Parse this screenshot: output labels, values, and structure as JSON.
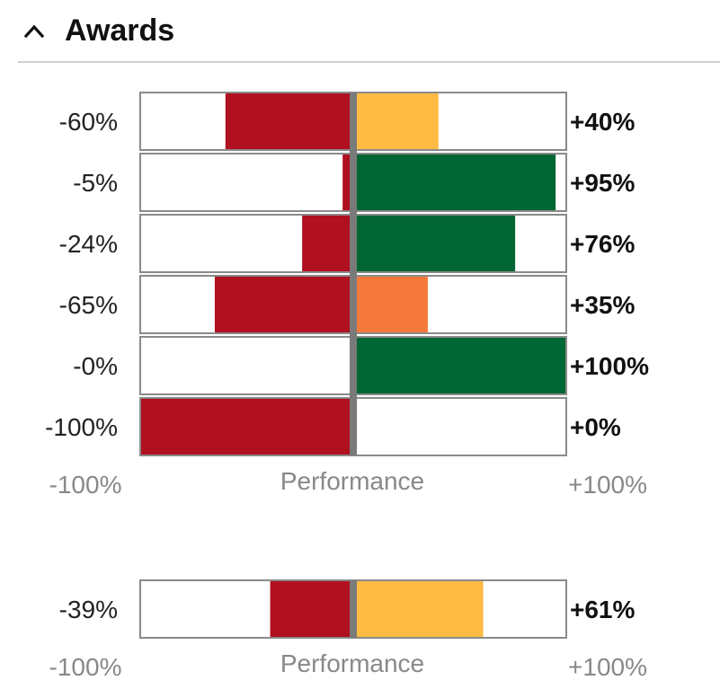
{
  "header": {
    "title": "Awards",
    "toggle_icon": "chevron-up-icon"
  },
  "colors": {
    "negative": "#B01020",
    "high": "#006633",
    "mid": "#FFBB44",
    "low": "#F5793A",
    "divider": "#7a7a7a",
    "frame": "#8a8a8a",
    "axis_text": "#888888"
  },
  "chart_data": [
    {
      "type": "bar",
      "orientation": "horizontal-diverging",
      "xlabel": "Performance",
      "xlim": [
        -100,
        100
      ],
      "tick_labels": [
        "-100%",
        "+100%"
      ],
      "rows": [
        {
          "negative": -60,
          "positive": 40,
          "negative_label": "-60%",
          "positive_label": "+40%",
          "positive_color": "#FFBB44"
        },
        {
          "negative": -5,
          "positive": 95,
          "negative_label": "-5%",
          "positive_label": "+95%",
          "positive_color": "#006633"
        },
        {
          "negative": -24,
          "positive": 76,
          "negative_label": "-24%",
          "positive_label": "+76%",
          "positive_color": "#006633"
        },
        {
          "negative": -65,
          "positive": 35,
          "negative_label": "-65%",
          "positive_label": "+35%",
          "positive_color": "#F5793A"
        },
        {
          "negative": 0,
          "positive": 100,
          "negative_label": "-0%",
          "positive_label": "+100%",
          "positive_color": "#006633"
        },
        {
          "negative": -100,
          "positive": 0,
          "negative_label": "-100%",
          "positive_label": "+0%",
          "positive_color": "#FFBB44"
        }
      ]
    },
    {
      "type": "bar",
      "orientation": "horizontal-diverging",
      "xlabel": "Performance",
      "xlim": [
        -100,
        100
      ],
      "tick_labels": [
        "-100%",
        "+100%"
      ],
      "rows": [
        {
          "negative": -39,
          "positive": 61,
          "negative_label": "-39%",
          "positive_label": "+61%",
          "positive_color": "#FFBB44"
        }
      ]
    }
  ]
}
